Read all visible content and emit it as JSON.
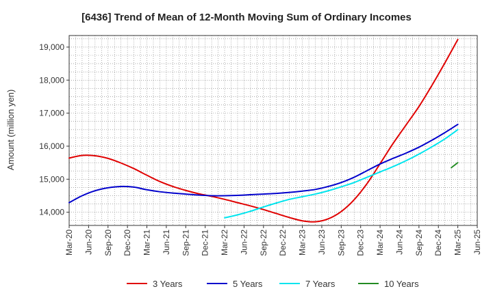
{
  "chart_data": {
    "type": "line",
    "title": "[6436]  Trend of Mean of 12-Month Moving Sum of Ordinary Incomes",
    "xlabel": "",
    "ylabel": "Amount (million yen)",
    "ylim": [
      13600,
      19350
    ],
    "yticks": [
      14000,
      15000,
      16000,
      17000,
      18000,
      19000
    ],
    "ytick_labels": [
      "14,000",
      "15,000",
      "16,000",
      "17,000",
      "18,000",
      "19,000"
    ],
    "x_tick_labels": [
      "Mar-20",
      "Jun-20",
      "Sep-20",
      "Dec-20",
      "Mar-21",
      "Jun-21",
      "Sep-21",
      "Dec-21",
      "Mar-22",
      "Jun-22",
      "Sep-22",
      "Dec-22",
      "Mar-23",
      "Jun-23",
      "Sep-23",
      "Dec-23",
      "Mar-24",
      "Jun-24",
      "Sep-24",
      "Dec-24",
      "Mar-25",
      "Jun-25"
    ],
    "grid": true,
    "legend_position": "bottom",
    "series": [
      {
        "name": "3 Years",
        "color": "#e00000",
        "x": [
          0,
          2,
          4,
          6,
          8,
          10,
          12,
          14,
          16,
          18,
          20,
          22,
          24,
          26,
          28,
          30,
          32,
          34,
          36,
          38,
          40,
          42,
          44,
          46,
          48,
          50,
          52,
          54,
          56,
          58,
          60
        ],
        "values": [
          15640,
          15720,
          15710,
          15630,
          15490,
          15320,
          15120,
          14930,
          14780,
          14660,
          14560,
          14480,
          14390,
          14290,
          14190,
          14080,
          13960,
          13840,
          13740,
          13710,
          13800,
          14020,
          14380,
          14870,
          15470,
          16080,
          16640,
          17200,
          17840,
          18520,
          19230
        ]
      },
      {
        "name": "5 Years",
        "color": "#0000cc",
        "x": [
          0,
          2,
          4,
          6,
          8,
          10,
          12,
          14,
          16,
          18,
          20,
          22,
          24,
          26,
          28,
          30,
          32,
          34,
          36,
          38,
          40,
          42,
          44,
          46,
          48,
          50,
          52,
          54,
          56,
          58,
          60
        ],
        "values": [
          14290,
          14500,
          14650,
          14740,
          14780,
          14760,
          14680,
          14620,
          14580,
          14550,
          14520,
          14500,
          14500,
          14510,
          14530,
          14550,
          14570,
          14600,
          14640,
          14690,
          14780,
          14900,
          15060,
          15260,
          15460,
          15630,
          15790,
          15970,
          16180,
          16410,
          16660
        ]
      },
      {
        "name": "7 Years",
        "color": "#00e5ee",
        "x": [
          24,
          26,
          28,
          30,
          32,
          34,
          36,
          38,
          40,
          42,
          44,
          46,
          48,
          50,
          52,
          54,
          56,
          58,
          60
        ],
        "values": [
          13830,
          13920,
          14030,
          14160,
          14280,
          14390,
          14470,
          14550,
          14650,
          14770,
          14900,
          15060,
          15220,
          15380,
          15560,
          15760,
          15980,
          16220,
          16500
        ]
      },
      {
        "name": "10 Years",
        "color": "#228b22",
        "x": [
          59,
          60
        ],
        "values": [
          15350,
          15500
        ]
      }
    ]
  }
}
